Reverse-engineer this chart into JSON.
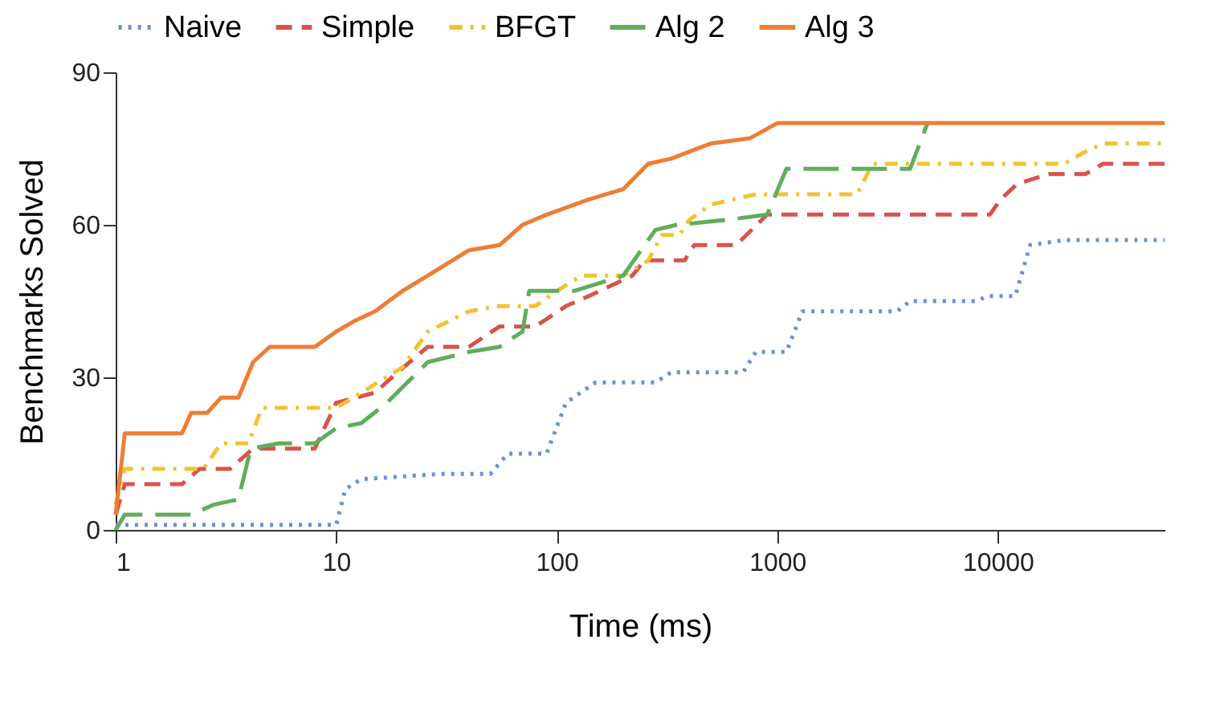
{
  "chart_data": {
    "type": "line",
    "xlabel": "Time (ms)",
    "ylabel": "Benchmarks Solved",
    "log": "x",
    "grid": false,
    "legend": "top",
    "xlim": [
      1,
      57000
    ],
    "xticks": [
      1,
      10,
      100,
      1000,
      10000
    ],
    "ylim": [
      0,
      90
    ],
    "yticks": [
      0,
      30,
      60,
      90
    ],
    "series": [
      {
        "name": "Naive",
        "color": "#6e8fdc",
        "line_style": "dotted",
        "x": [
          1,
          10,
          11,
          13,
          30,
          50,
          60,
          90,
          110,
          150,
          280,
          330,
          700,
          800,
          1100,
          1300,
          3500,
          4000,
          8000,
          9000,
          12000,
          14000,
          20000,
          57000
        ],
        "values": [
          1,
          1,
          8,
          10,
          11,
          11,
          15,
          15,
          25,
          29,
          29,
          31,
          31,
          35,
          35,
          43,
          43,
          45,
          45,
          46,
          46,
          56,
          57,
          57
        ]
      },
      {
        "name": "Simple",
        "color": "#d9534a",
        "line_style": "dashed",
        "x": [
          1,
          1.1,
          2,
          2.4,
          3.3,
          4.2,
          8,
          10,
          15,
          19,
          26,
          40,
          55,
          80,
          110,
          140,
          220,
          250,
          380,
          420,
          650,
          900,
          9200,
          10300,
          12200,
          17000,
          25000,
          30000,
          57000
        ],
        "values": [
          3,
          9,
          9,
          12,
          12,
          16,
          16,
          25,
          27,
          31,
          36,
          36,
          40,
          40,
          44,
          46,
          50,
          53,
          53,
          56,
          56,
          62,
          62,
          65,
          68,
          70,
          70,
          72,
          72
        ]
      },
      {
        "name": "BFGT",
        "color": "#f2c230",
        "line_style": "dashdot",
        "x": [
          1,
          1.1,
          2.5,
          3,
          4,
          4.6,
          10,
          13,
          20,
          26,
          40,
          55,
          80,
          100,
          130,
          200,
          260,
          300,
          360,
          400,
          500,
          800,
          2300,
          2700,
          20000,
          24000,
          30000,
          57000
        ],
        "values": [
          5,
          12,
          12,
          17,
          17,
          24,
          24,
          27,
          32,
          39,
          43,
          44,
          44,
          47,
          50,
          50,
          53,
          58,
          58,
          61,
          64,
          66,
          66,
          72,
          72,
          74,
          76,
          76
        ]
      },
      {
        "name": "Alg 2",
        "color": "#5fae5a",
        "line_style": "longdash",
        "x": [
          1,
          1.1,
          2.2,
          2.8,
          3.6,
          4.1,
          5.5,
          8,
          10,
          13,
          17,
          26,
          40,
          55,
          70,
          75,
          120,
          200,
          280,
          350,
          600,
          900,
          1100,
          4000,
          4800
        ],
        "values": [
          0,
          3,
          3,
          5,
          6,
          16,
          17,
          17,
          20,
          21,
          25,
          33,
          35,
          36,
          39,
          47,
          47,
          50,
          59,
          60,
          61,
          62,
          71,
          71,
          80
        ]
      },
      {
        "name": "Alg 3",
        "color": "#ee7d35",
        "line_style": "solid",
        "x": [
          1,
          1.1,
          2,
          2.2,
          2.6,
          3,
          3.6,
          4.2,
          5,
          8,
          10,
          12,
          15,
          20,
          26,
          40,
          55,
          70,
          90,
          140,
          200,
          260,
          330,
          500,
          750,
          1000,
          57000
        ],
        "values": [
          3,
          19,
          19,
          23,
          23,
          26,
          26,
          33,
          36,
          36,
          39,
          41,
          43,
          47,
          50,
          55,
          56,
          60,
          62,
          65,
          67,
          72,
          73,
          76,
          77,
          80,
          80
        ]
      }
    ]
  }
}
